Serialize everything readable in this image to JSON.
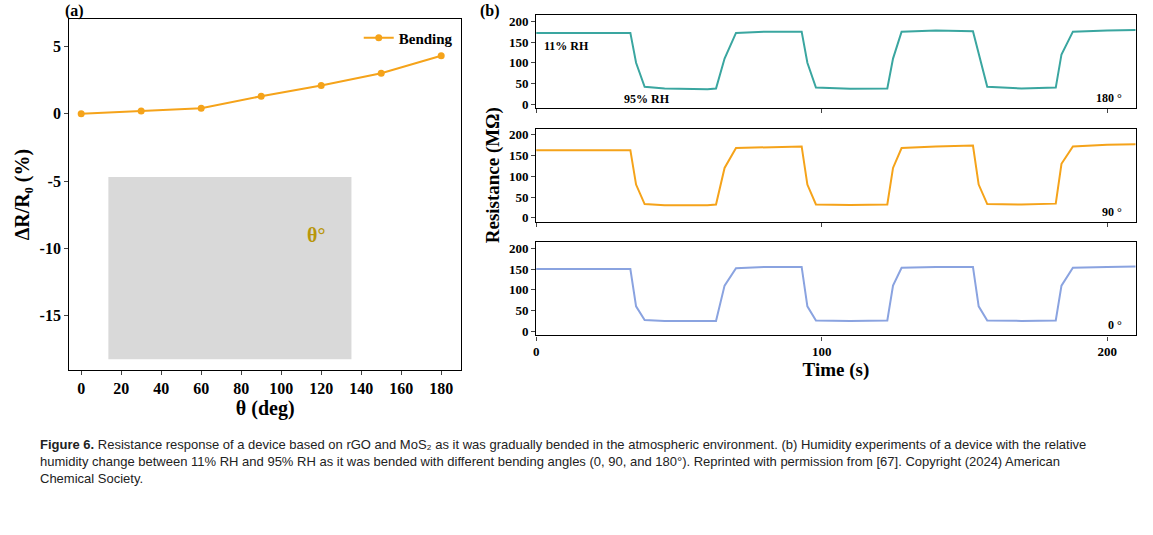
{
  "chart_data": [
    {
      "type": "line",
      "title": "(a)",
      "x": [
        0,
        30,
        60,
        90,
        120,
        150,
        180
      ],
      "series": [
        {
          "name": "Bending",
          "color": "#f5a31a",
          "marker": "circle",
          "values": [
            0,
            0.2,
            0.4,
            1.3,
            2.1,
            3.0,
            4.3
          ]
        }
      ],
      "x_label": "θ (deg)",
      "y_label": "ΔR/R₀ (%)",
      "xlim": [
        -6,
        190
      ],
      "xticks": [
        0,
        20,
        40,
        60,
        80,
        100,
        120,
        140,
        160,
        180
      ],
      "ylim": [
        -19,
        7
      ],
      "yticks": [
        -15,
        -10,
        -5,
        0,
        5
      ],
      "legend": "top right",
      "annotations": [
        {
          "text": "θ°",
          "x": 112,
          "y": -9
        }
      ]
    },
    {
      "type": "line",
      "title": "(b)",
      "x": [
        0,
        33,
        35,
        38,
        45,
        60,
        63,
        66,
        70,
        80,
        93,
        95,
        98,
        110,
        123,
        125,
        128,
        140,
        153,
        155,
        158,
        170,
        182,
        184,
        188,
        200,
        210
      ],
      "series": [
        {
          "color": "#3aa6a0",
          "values": [
            172,
            172,
            100,
            42,
            38,
            36,
            38,
            110,
            172,
            175,
            175,
            100,
            40,
            37,
            38,
            110,
            175,
            178,
            176,
            120,
            42,
            38,
            40,
            120,
            175,
            178,
            179
          ]
        }
      ],
      "xlim": [
        0,
        210
      ],
      "xticks": [
        0,
        100,
        200
      ],
      "ylim": [
        -10,
        215
      ],
      "yticks": [
        0,
        50,
        100,
        150,
        200
      ],
      "tick_labels": "y",
      "annotations": [
        {
          "text": "11% RH",
          "x": 2,
          "y": 140
        },
        {
          "text": "95% RH",
          "x": 30,
          "y": 12
        },
        {
          "text": "180 °",
          "x": 206,
          "y": 15
        }
      ]
    },
    {
      "type": "line",
      "x": [
        0,
        33,
        35,
        38,
        45,
        60,
        63,
        66,
        70,
        80,
        93,
        95,
        98,
        110,
        123,
        125,
        128,
        140,
        153,
        155,
        158,
        170,
        182,
        184,
        188,
        200,
        210
      ],
      "series": [
        {
          "color": "#f5a31a",
          "values": [
            163,
            163,
            80,
            33,
            30,
            30,
            32,
            120,
            168,
            170,
            172,
            80,
            32,
            31,
            32,
            120,
            168,
            172,
            174,
            80,
            33,
            32,
            34,
            130,
            172,
            176,
            177
          ]
        }
      ],
      "y_label": "Resistance (MΩ)",
      "xlim": [
        0,
        210
      ],
      "xticks": [
        0,
        100,
        200
      ],
      "ylim": [
        -10,
        215
      ],
      "yticks": [
        0,
        50,
        100,
        150,
        200
      ],
      "tick_labels": "y",
      "annotations": [
        {
          "text": "90 °",
          "x": 206,
          "y": 15
        }
      ]
    },
    {
      "type": "line",
      "x": [
        0,
        33,
        35,
        38,
        45,
        60,
        63,
        66,
        70,
        80,
        93,
        95,
        98,
        110,
        123,
        125,
        128,
        140,
        153,
        155,
        158,
        170,
        182,
        184,
        188,
        200,
        210
      ],
      "series": [
        {
          "color": "#8aa3e0",
          "values": [
            150,
            150,
            60,
            27,
            25,
            24,
            25,
            110,
            152,
            155,
            155,
            60,
            26,
            25,
            26,
            110,
            153,
            155,
            155,
            60,
            26,
            25,
            26,
            110,
            153,
            155,
            156
          ]
        }
      ],
      "x_label": "Time (s)",
      "xlim": [
        0,
        210
      ],
      "xticks": [
        0,
        100,
        200
      ],
      "ylim": [
        -10,
        215
      ],
      "yticks": [
        0,
        50,
        100,
        150,
        200
      ],
      "annotations": [
        {
          "text": "0 °",
          "x": 206,
          "y": 15
        }
      ]
    }
  ],
  "caption": {
    "label": "Figure 6.",
    "text": "Resistance response of a device based on rGO and MoS₂ as it was gradually bended in the atmospheric environment. (b) Humidity experiments of a device with the relative humidity change between 11% RH and 95% RH as it was bended with different bending angles (0, 90, and 180°). Reprinted with permission from [67]. Copyright (2024) American Chemical Society."
  }
}
